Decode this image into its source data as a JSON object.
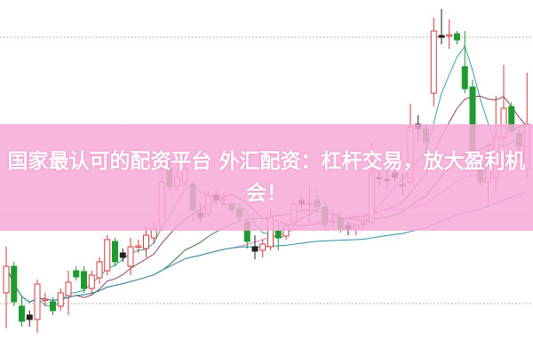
{
  "banner": {
    "text": "国家最认可的配资平台 外汇配资：杠杆交易，放大盈利机会！"
  },
  "colors": {
    "up": "#d23c3c",
    "down": "#1f9a2f",
    "doji": "#222222",
    "band": "#f8aad7",
    "grid": "#999999",
    "ma": [
      "#3aa3a3",
      "#8a4060",
      "#2a7a2a",
      "#e080c0",
      "#2f8f9f"
    ]
  },
  "chart_data": {
    "type": "candlestick",
    "grid": true,
    "ylim": [
      0,
      20
    ],
    "gridlines": [
      3.9,
      8.9,
      13.9,
      18.9
    ],
    "moving_average_periods": [
      5,
      10,
      20,
      30,
      60
    ],
    "ohlc": [
      [
        4.5,
        7.1,
        2.5,
        6.0
      ],
      [
        6.0,
        6.25,
        3.75,
        4.0
      ],
      [
        3.75,
        4.25,
        2.6,
        2.9
      ],
      [
        3.25,
        3.5,
        2.6,
        3.0
      ],
      [
        3.0,
        5.25,
        2.25,
        5.0
      ],
      [
        4.1,
        4.5,
        3.75,
        4.15
      ],
      [
        4.0,
        4.25,
        3.25,
        3.5
      ],
      [
        3.75,
        4.75,
        3.5,
        4.5
      ],
      [
        4.35,
        5.75,
        3.25,
        5.1
      ],
      [
        5.75,
        6.0,
        5.2,
        5.4
      ],
      [
        5.7,
        6.0,
        4.5,
        4.75
      ],
      [
        4.75,
        5.75,
        4.5,
        5.5
      ],
      [
        5.35,
        6.5,
        5.0,
        6.25
      ],
      [
        5.75,
        7.75,
        5.5,
        7.5
      ],
      [
        7.4,
        7.6,
        6.0,
        6.25
      ],
      [
        6.75,
        7.0,
        6.25,
        6.5
      ],
      [
        6.0,
        7.6,
        5.5,
        7.1
      ],
      [
        7.1,
        7.5,
        6.75,
        7.15
      ],
      [
        7.0,
        8.25,
        6.5,
        7.75
      ],
      [
        7.6,
        8.5,
        7.25,
        8.1
      ],
      [
        8.25,
        12.5,
        8.0,
        10.75
      ],
      [
        11.5,
        12.0,
        10.25,
        10.5
      ],
      [
        10.5,
        11.5,
        10.25,
        11.0
      ],
      [
        10.75,
        12.0,
        10.5,
        11.5
      ],
      [
        10.65,
        10.75,
        8.5,
        9.15
      ],
      [
        9.0,
        9.5,
        8.5,
        8.75
      ],
      [
        9.0,
        10.25,
        8.75,
        10.0
      ],
      [
        10.0,
        10.25,
        9.5,
        9.75
      ],
      [
        9.75,
        10.1,
        9.4,
        9.8
      ],
      [
        9.5,
        9.8,
        9.0,
        9.2
      ],
      [
        9.25,
        9.5,
        8.5,
        8.75
      ],
      [
        8.5,
        8.75,
        7.0,
        7.4
      ],
      [
        7.1,
        7.75,
        6.4,
        6.85
      ],
      [
        6.9,
        7.5,
        6.5,
        7.25
      ],
      [
        7.1,
        9.25,
        6.9,
        8.75
      ],
      [
        8.0,
        8.5,
        6.9,
        7.6
      ],
      [
        7.7,
        8.5,
        7.5,
        8.25
      ],
      [
        8.5,
        9.75,
        8.25,
        9.5
      ],
      [
        9.7,
        9.9,
        9.3,
        9.5
      ],
      [
        9.5,
        10.5,
        8.5,
        9.55
      ],
      [
        9.75,
        10.25,
        9.0,
        9.35
      ],
      [
        9.35,
        9.75,
        8.0,
        8.35
      ],
      [
        8.5,
        9.0,
        8.25,
        8.55
      ],
      [
        8.75,
        9.0,
        7.9,
        8.1
      ],
      [
        8.3,
        8.5,
        7.75,
        8.1
      ],
      [
        8.1,
        8.5,
        7.75,
        8.3
      ],
      [
        8.4,
        8.75,
        8.1,
        8.45
      ],
      [
        8.5,
        13.0,
        8.25,
        11.25
      ],
      [
        11.0,
        11.6,
        10.5,
        10.95
      ],
      [
        10.9,
        11.5,
        10.4,
        10.85
      ],
      [
        11.25,
        11.5,
        10.75,
        11.0
      ],
      [
        10.6,
        11.25,
        10.0,
        10.55
      ],
      [
        10.75,
        15.15,
        10.5,
        13.85
      ],
      [
        14.0,
        14.5,
        13.0,
        13.75
      ],
      [
        13.75,
        14.0,
        12.5,
        13.0
      ],
      [
        15.75,
        20.0,
        15.0,
        19.25
      ],
      [
        19.0,
        20.5,
        18.5,
        18.9
      ],
      [
        19.0,
        19.9,
        18.25,
        19.05
      ],
      [
        19.1,
        19.25,
        18.5,
        18.75
      ],
      [
        17.25,
        19.25,
        15.75,
        16.0
      ],
      [
        16.1,
        16.5,
        12.25,
        12.5
      ],
      [
        11.75,
        12.0,
        10.5,
        10.75
      ],
      [
        10.75,
        13.0,
        9.5,
        12.25
      ],
      [
        11.0,
        15.6,
        10.25,
        13.25
      ],
      [
        13.25,
        17.35,
        12.75,
        14.9
      ],
      [
        15.0,
        15.25,
        13.4,
        13.6
      ],
      [
        13.5,
        13.75,
        12.5,
        12.75
      ],
      [
        11.5,
        16.9,
        11.0,
        14.0
      ]
    ]
  }
}
